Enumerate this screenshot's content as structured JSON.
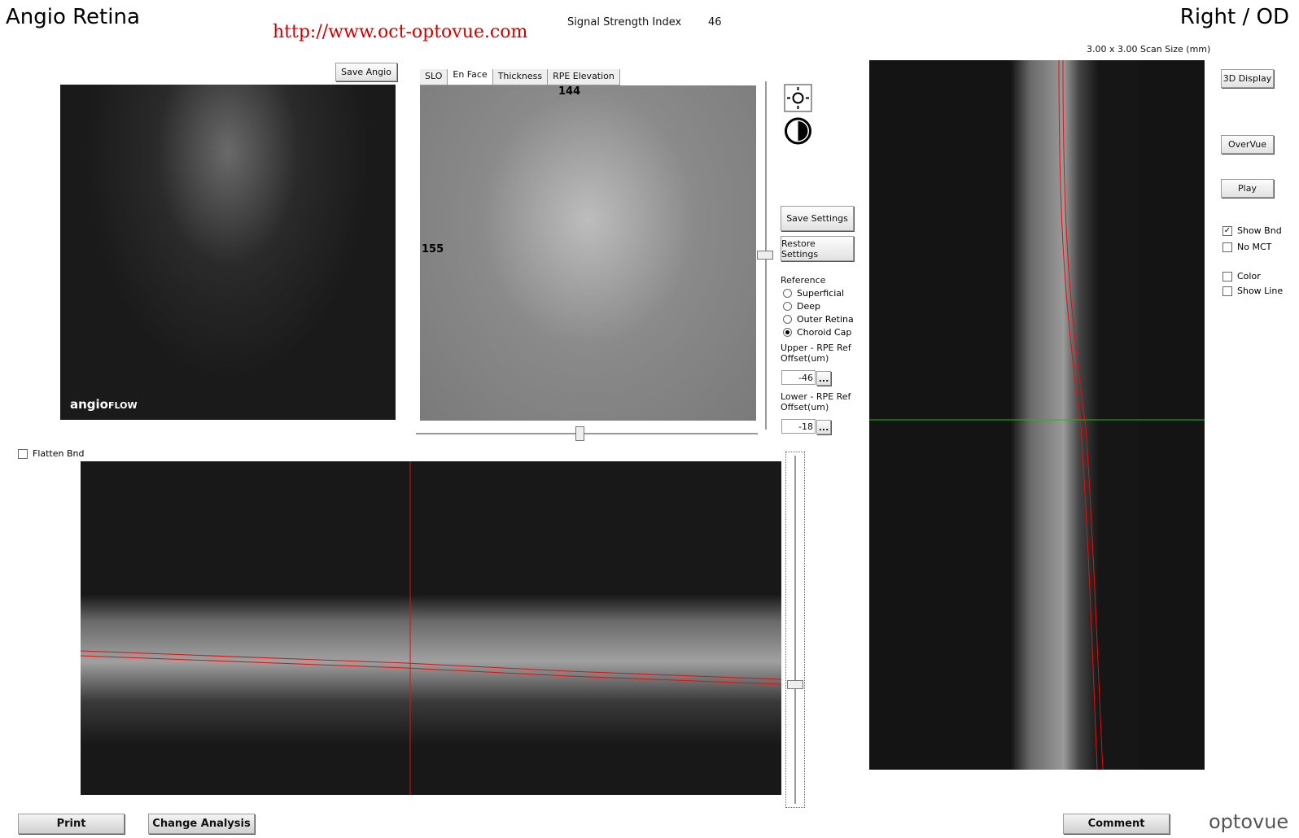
{
  "header": {
    "title": "Angio Retina",
    "url": "http://www.oct-optovue.com",
    "signal_label": "Signal Strength Index",
    "signal_value": "46",
    "eye": "Right / OD",
    "scan_size": "3.00 x 3.00 Scan Size (mm)"
  },
  "angio": {
    "save_button": "Save Angio",
    "logo_main": "angio",
    "logo_sub": "FLOW"
  },
  "enface": {
    "tabs": [
      "SLO",
      "En Face",
      "Thickness",
      "RPE Elevation"
    ],
    "active_tab": 1,
    "top_label": "144",
    "left_label": "155"
  },
  "settings": {
    "save_button": "Save Settings",
    "restore_button": "Restore Settings",
    "reference_label": "Reference",
    "reference_options": [
      {
        "label": "Superficial",
        "checked": false
      },
      {
        "label": "Deep",
        "checked": false
      },
      {
        "label": "Outer Retina",
        "checked": false
      },
      {
        "label": "Choroid Cap",
        "checked": true
      }
    ],
    "upper_label": "Upper - RPE Ref Offset(um)",
    "upper_value": "-46",
    "lower_label": "Lower - RPE Ref Offset(um)",
    "lower_value": "-18",
    "more_button": "..."
  },
  "side": {
    "buttons": [
      "3D Display",
      "OverVue",
      "Play"
    ],
    "checkboxes": [
      {
        "label": "Show Bnd",
        "checked": true
      },
      {
        "label": "No MCT",
        "checked": false
      },
      {
        "label": "Color",
        "checked": false
      },
      {
        "label": "Show Line",
        "checked": false
      }
    ]
  },
  "bscan": {
    "flatten": {
      "label": "Flatten Bnd",
      "checked": false
    }
  },
  "footer": {
    "print": "Print",
    "change": "Change Analysis",
    "comment": "Comment",
    "brand": "optovue"
  }
}
